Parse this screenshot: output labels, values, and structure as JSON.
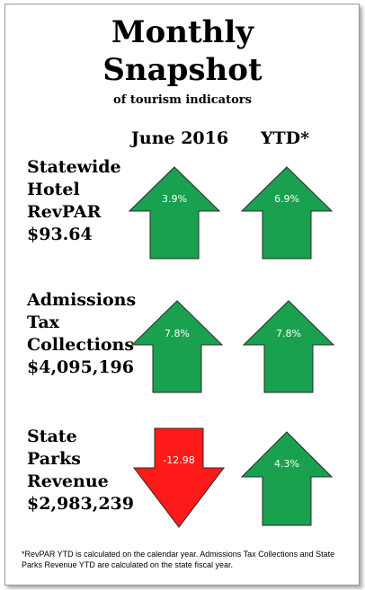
{
  "header": {
    "title_line1": "Monthly",
    "title_line2": "Snapshot",
    "subtitle": "of tourism indicators"
  },
  "columns": {
    "month": "June 2016",
    "ytd": "YTD*"
  },
  "colors": {
    "up": "#1aa14f",
    "down": "#ff1a1a",
    "outline": "#2a2a2a"
  },
  "rows": [
    {
      "label_lines": [
        "Statewide",
        "Hotel",
        "RevPAR",
        "$93.64"
      ],
      "month": {
        "value": "3.9%",
        "direction": "up",
        "icon": "up-arrow-icon"
      },
      "ytd": {
        "value": "6.9%",
        "direction": "up",
        "icon": "up-arrow-icon"
      }
    },
    {
      "label_lines": [
        "Admissions",
        "Tax",
        "Collections",
        "$4,095,196"
      ],
      "month": {
        "value": "7.8%",
        "direction": "up",
        "icon": "up-arrow-icon"
      },
      "ytd": {
        "value": "7.8%",
        "direction": "up",
        "icon": "up-arrow-icon"
      }
    },
    {
      "label_lines": [
        "State",
        "Parks",
        "Revenue",
        "$2,983,239"
      ],
      "month": {
        "value": "-12.98",
        "direction": "down",
        "icon": "down-arrow-icon"
      },
      "ytd": {
        "value": "4.3%",
        "direction": "up",
        "icon": "up-arrow-icon"
      }
    }
  ],
  "footnote": "*RevPAR YTD is calculated on the calendar year. Admissions Tax Collections and State Parks Revenue YTD are calculated on the state fiscal year."
}
